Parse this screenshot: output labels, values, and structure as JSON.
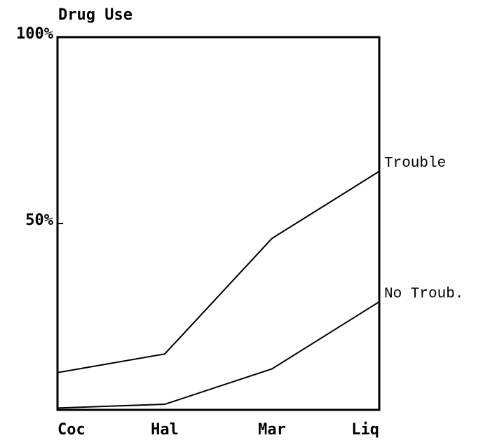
{
  "chart_data": {
    "type": "line",
    "title": "Drug Use",
    "categories": [
      "Coc",
      "Hal",
      "Mar",
      "Liq"
    ],
    "series": [
      {
        "name": "Trouble",
        "color": "#000000",
        "values": [
          10,
          15,
          46,
          64
        ]
      },
      {
        "name": "No Troub.",
        "color": "#000000",
        "values": [
          0.5,
          1.5,
          11,
          29
        ]
      }
    ],
    "ylim": [
      0,
      100
    ],
    "yticks": [
      {
        "value": 100,
        "label": "100%"
      },
      {
        "value": 50,
        "label": "50%"
      }
    ],
    "grid": false
  }
}
